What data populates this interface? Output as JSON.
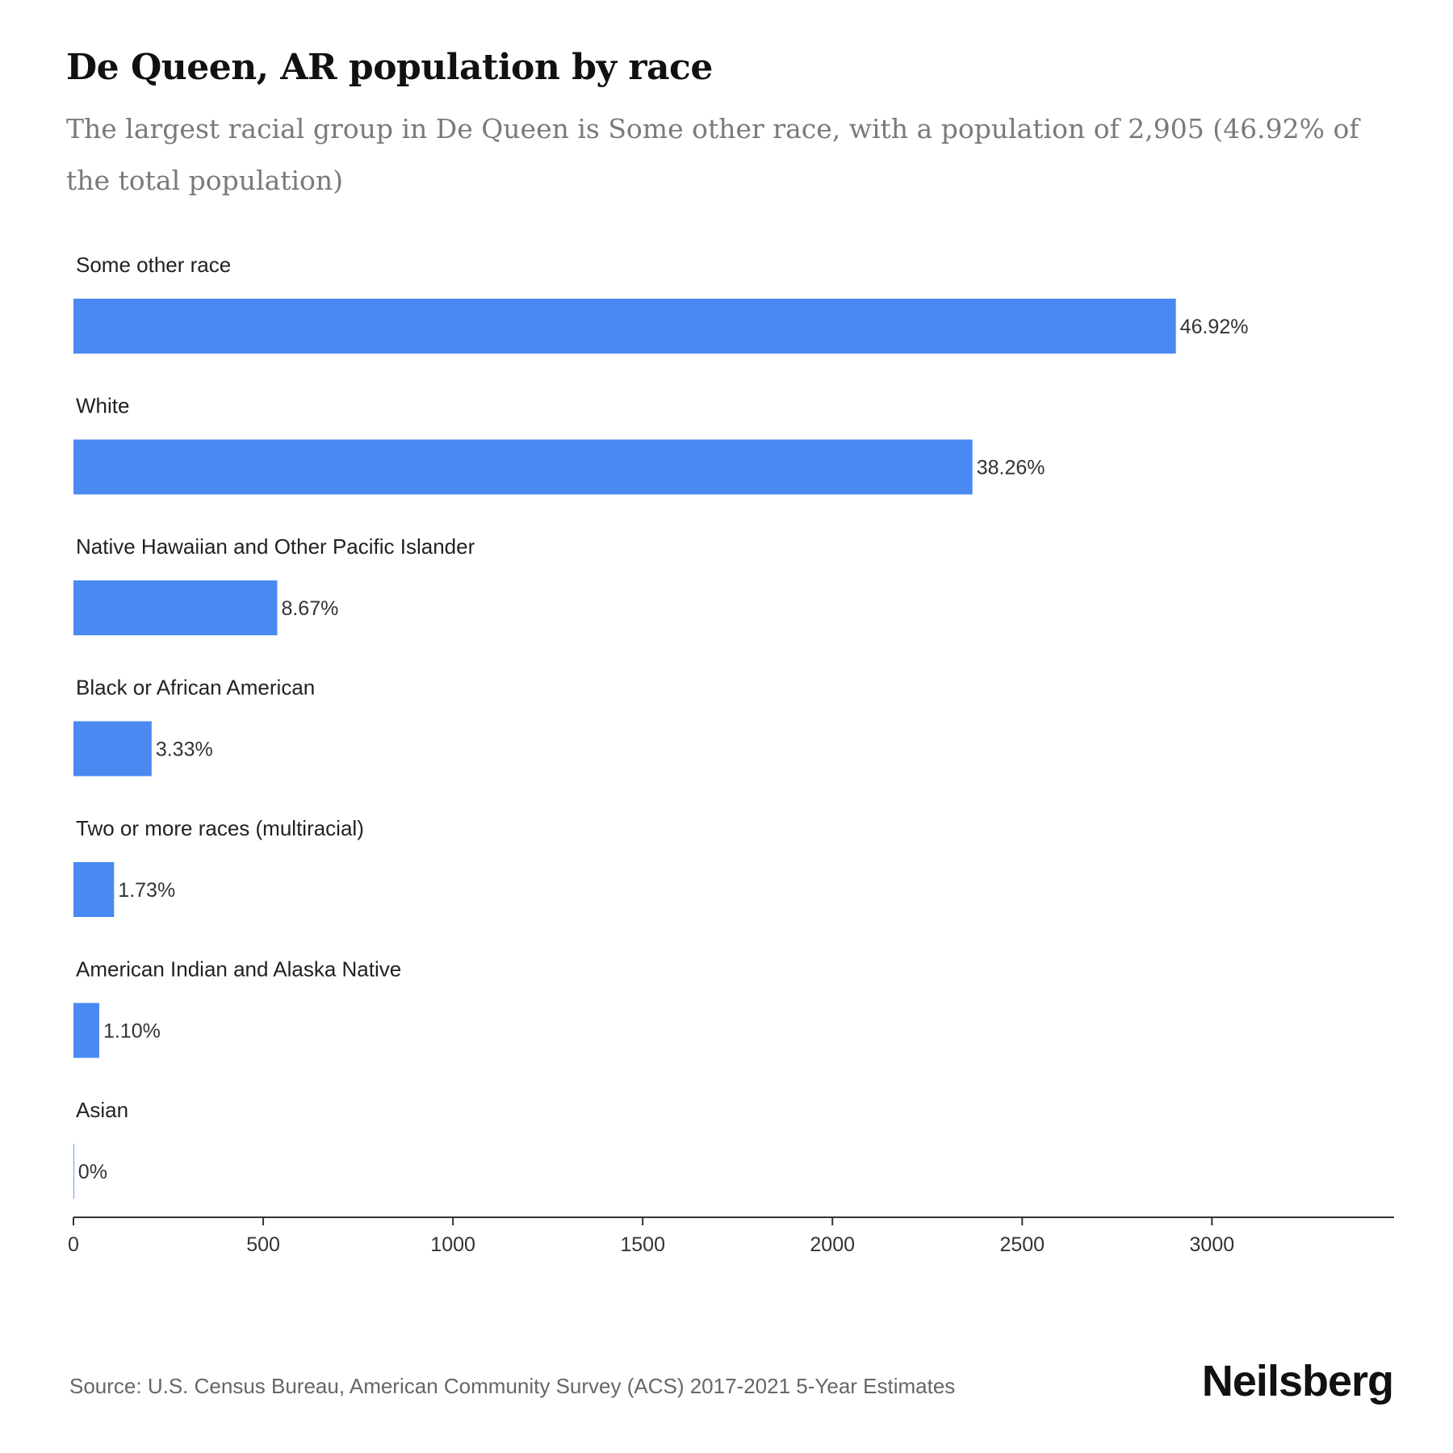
{
  "header": {
    "title": "De Queen, AR population by race",
    "subtitle": "The largest racial group in De Queen is Some other race, with a population of 2,905 (46.92% of the total population)"
  },
  "footer": {
    "source": "Source: U.S. Census Bureau, American Community Survey (ACS) 2017-2021 5-Year Estimates",
    "brand": "Neilsberg"
  },
  "colors": {
    "bar": "#4a89f2",
    "axis": "#333333",
    "text": "#222222"
  },
  "chart_data": {
    "type": "bar",
    "orientation": "horizontal",
    "categories": [
      "Some other race",
      "White",
      "Native Hawaiian and Other Pacific Islander",
      "Black or African American",
      "Two or more races (multiracial)",
      "American Indian and Alaska Native",
      "Asian"
    ],
    "values": [
      2905,
      2369,
      537,
      206,
      107,
      68,
      0
    ],
    "value_labels": [
      "46.92%",
      "38.26%",
      "8.67%",
      "3.33%",
      "1.73%",
      "1.10%",
      "0%"
    ],
    "xlim": [
      0,
      3480
    ],
    "xticks": [
      0,
      500,
      1000,
      1500,
      2000,
      2500,
      3000
    ],
    "xlabel": "",
    "ylabel": "",
    "grid": false,
    "legend": "none"
  }
}
